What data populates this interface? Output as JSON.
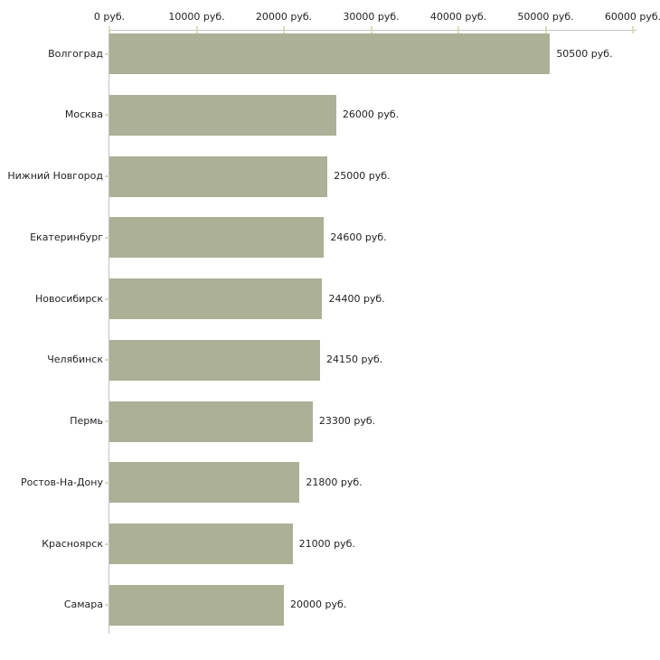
{
  "chart_data": {
    "type": "bar",
    "orientation": "horizontal",
    "title": "",
    "xlabel": "",
    "ylabel": "",
    "categories": [
      "Волгоград",
      "Москва",
      "Нижний Новгород",
      "Екатеринбург",
      "Новосибирск",
      "Челябинск",
      "Пермь",
      "Ростов-На-Дону",
      "Красноярск",
      "Самара"
    ],
    "values": [
      50500,
      26000,
      25000,
      24600,
      24400,
      24150,
      23300,
      21800,
      21000,
      20000
    ],
    "value_labels": [
      "50500 руб.",
      "26000 руб.",
      "25000 руб.",
      "24600 руб.",
      "24400 руб.",
      "24150 руб.",
      "23300 руб.",
      "21800 руб.",
      "21000 руб.",
      "20000 руб."
    ],
    "x_axis": {
      "position": "top",
      "min": 0,
      "max": 60000,
      "tick_interval": 10000,
      "tick_values": [
        0,
        10000,
        20000,
        30000,
        40000,
        50000,
        60000
      ],
      "tick_labels": [
        "0 руб.",
        "10000 руб.",
        "20000 руб.",
        "30000 руб.",
        "40000 руб.",
        "50000 руб.",
        "60000 руб."
      ]
    },
    "grid": false,
    "legend": false,
    "colors": {
      "bar": "#abb096",
      "axis_line": "#c2c2c2",
      "x_tick": "#d9dcb8",
      "y_tick": "#d9d9c6",
      "text": "#1f1f1f",
      "background": "#ffffff"
    }
  }
}
